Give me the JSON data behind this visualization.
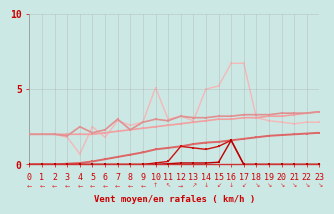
{
  "bg_color": "#cce8e4",
  "grid_color": "#aaaaaa",
  "xlabel": "Vent moyen/en rafales ( km/h )",
  "xlim": [
    0,
    23
  ],
  "ylim": [
    0,
    10
  ],
  "yticks": [
    0,
    5,
    10
  ],
  "xticks": [
    0,
    1,
    2,
    3,
    4,
    5,
    6,
    7,
    8,
    9,
    10,
    11,
    12,
    13,
    14,
    15,
    16,
    17,
    18,
    19,
    20,
    21,
    22,
    23
  ],
  "series": [
    {
      "comment": "light salmon horizontal ~2, slowly rising to ~3.5",
      "x": [
        0,
        1,
        2,
        3,
        4,
        5,
        6,
        7,
        8,
        9,
        10,
        11,
        12,
        13,
        14,
        15,
        16,
        17,
        18,
        19,
        20,
        21,
        22,
        23
      ],
      "y": [
        2.0,
        2.0,
        2.0,
        2.0,
        2.0,
        2.0,
        2.1,
        2.2,
        2.3,
        2.4,
        2.5,
        2.6,
        2.7,
        2.8,
        2.9,
        3.0,
        3.0,
        3.1,
        3.1,
        3.2,
        3.2,
        3.3,
        3.4,
        3.5
      ],
      "color": "#f0a0a0",
      "linewidth": 1.2,
      "marker": "s",
      "markersize": 2.0,
      "zorder": 2
    },
    {
      "comment": "medium pink noisy line starting at ~2, fluctuating ~2-3.5",
      "x": [
        0,
        1,
        2,
        3,
        4,
        5,
        6,
        7,
        8,
        9,
        10,
        11,
        12,
        13,
        14,
        15,
        16,
        17,
        18,
        19,
        20,
        21,
        22,
        23
      ],
      "y": [
        2.0,
        2.0,
        2.0,
        1.9,
        2.5,
        2.1,
        2.3,
        3.0,
        2.3,
        2.8,
        3.0,
        2.9,
        3.2,
        3.1,
        3.1,
        3.2,
        3.2,
        3.3,
        3.3,
        3.3,
        3.4,
        3.4,
        3.4,
        3.5
      ],
      "color": "#e09090",
      "linewidth": 1.2,
      "marker": "s",
      "markersize": 2.0,
      "zorder": 3
    },
    {
      "comment": "lightest pink very volatile up to 6.7",
      "x": [
        0,
        1,
        2,
        3,
        4,
        5,
        6,
        7,
        8,
        9,
        10,
        11,
        12,
        13,
        14,
        15,
        16,
        17,
        18,
        19,
        20,
        21,
        22,
        23
      ],
      "y": [
        2.0,
        2.0,
        2.0,
        1.8,
        0.7,
        2.5,
        1.8,
        2.9,
        2.6,
        2.8,
        5.1,
        3.0,
        3.2,
        2.9,
        5.0,
        5.2,
        6.7,
        6.7,
        3.1,
        2.9,
        2.8,
        2.7,
        2.8,
        2.8
      ],
      "color": "#f4b8b8",
      "linewidth": 1.0,
      "marker": "s",
      "markersize": 2.0,
      "zorder": 1
    },
    {
      "comment": "medium red smooth rising from 0 to ~2",
      "x": [
        0,
        1,
        2,
        3,
        4,
        5,
        6,
        7,
        8,
        9,
        10,
        11,
        12,
        13,
        14,
        15,
        16,
        17,
        18,
        19,
        20,
        21,
        22,
        23
      ],
      "y": [
        0.0,
        0.0,
        0.0,
        0.05,
        0.1,
        0.2,
        0.35,
        0.5,
        0.65,
        0.8,
        1.0,
        1.1,
        1.2,
        1.35,
        1.45,
        1.5,
        1.6,
        1.7,
        1.8,
        1.9,
        1.95,
        2.0,
        2.05,
        2.1
      ],
      "color": "#dd6666",
      "linewidth": 1.4,
      "marker": "s",
      "markersize": 2.0,
      "zorder": 4
    },
    {
      "comment": "dark red noisy near 0 with spikes ~1.5",
      "x": [
        0,
        1,
        2,
        3,
        4,
        5,
        6,
        7,
        8,
        9,
        10,
        11,
        12,
        13,
        14,
        15,
        16,
        17,
        18,
        19,
        20,
        21,
        22,
        23
      ],
      "y": [
        0.0,
        0.0,
        0.0,
        0.0,
        0.0,
        0.0,
        0.0,
        0.0,
        0.0,
        0.0,
        0.1,
        0.2,
        1.2,
        1.1,
        1.0,
        1.2,
        1.6,
        0.0,
        0.0,
        0.0,
        0.0,
        0.0,
        0.0,
        0.0
      ],
      "color": "#cc1111",
      "linewidth": 1.0,
      "marker": "s",
      "markersize": 2.0,
      "zorder": 5
    },
    {
      "comment": "dark red flat near 0 with small spike",
      "x": [
        0,
        1,
        2,
        3,
        4,
        5,
        6,
        7,
        8,
        9,
        10,
        11,
        12,
        13,
        14,
        15,
        16,
        17,
        18,
        19,
        20,
        21,
        22,
        23
      ],
      "y": [
        0.0,
        0.0,
        0.0,
        0.0,
        0.0,
        0.0,
        0.0,
        0.0,
        0.0,
        0.0,
        0.0,
        0.05,
        0.1,
        0.1,
        0.1,
        0.15,
        1.6,
        0.0,
        0.0,
        0.0,
        0.0,
        0.0,
        0.0,
        0.0
      ],
      "color": "#bb0000",
      "linewidth": 1.0,
      "marker": "s",
      "markersize": 1.8,
      "zorder": 6
    }
  ],
  "bottom_line_y": 0.0,
  "xlabel_fontsize": 6.5,
  "tick_fontsize": 6,
  "tick_color": "#cc0000",
  "axis_label_color": "#cc0000",
  "arrow_chars": [
    "←",
    "←",
    "←",
    "←",
    "←",
    "←",
    "←",
    "←",
    "←",
    "←",
    "↑",
    "↖",
    "→",
    "↗",
    "↓",
    "↙",
    "↓",
    "↙",
    "↘",
    "↘",
    "↘",
    "↘",
    "↘",
    "↘"
  ]
}
